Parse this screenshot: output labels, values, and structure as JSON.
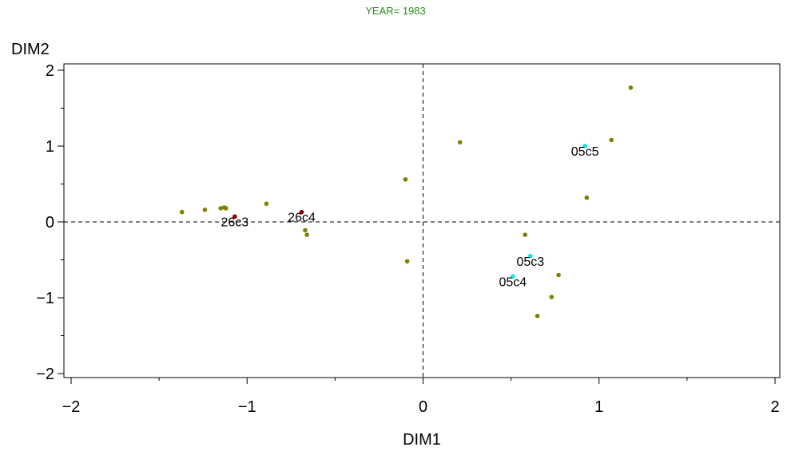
{
  "chart_data": {
    "type": "scatter",
    "title": "YEAR= 1983",
    "xlabel": "DIM1",
    "ylabel": "DIM2",
    "xlim": [
      -2,
      2
    ],
    "ylim": [
      -2,
      2
    ],
    "xticks": [
      -2,
      -1,
      0,
      1,
      2
    ],
    "yticks": [
      -2,
      -1,
      0,
      1,
      2
    ],
    "xtick_labels": [
      "−2",
      "−1",
      "0",
      "1",
      "2"
    ],
    "ytick_labels": [
      "−2",
      "−1",
      "0",
      "1",
      "2"
    ],
    "grid": false,
    "reference_lines": {
      "x": 0,
      "y": 0,
      "style": "dashed"
    },
    "colors": {
      "default": "#808000",
      "highlight_05": "#00e5e5",
      "highlight_26": "#8b0000",
      "title": "#2e8b1f"
    },
    "points": [
      {
        "x": -1.37,
        "y": 0.13,
        "label": ""
      },
      {
        "x": -1.24,
        "y": 0.16,
        "label": ""
      },
      {
        "x": -1.15,
        "y": 0.18,
        "label": ""
      },
      {
        "x": -1.13,
        "y": 0.19,
        "label": ""
      },
      {
        "x": -1.12,
        "y": 0.18,
        "label": ""
      },
      {
        "x": -1.07,
        "y": 0.07,
        "label": "26c3",
        "color": "#8b0000"
      },
      {
        "x": -0.89,
        "y": 0.24,
        "label": ""
      },
      {
        "x": -0.69,
        "y": 0.13,
        "label": "26c4",
        "color": "#8b0000"
      },
      {
        "x": -0.67,
        "y": -0.11,
        "label": ""
      },
      {
        "x": -0.66,
        "y": -0.17,
        "label": ""
      },
      {
        "x": -0.1,
        "y": 0.56,
        "label": ""
      },
      {
        "x": -0.09,
        "y": -0.52,
        "label": ""
      },
      {
        "x": 0.21,
        "y": 1.05,
        "label": ""
      },
      {
        "x": 0.58,
        "y": -0.17,
        "label": ""
      },
      {
        "x": 0.61,
        "y": -0.45,
        "label": "05c3",
        "color": "#00e5e5"
      },
      {
        "x": 0.51,
        "y": -0.72,
        "label": "05c4",
        "color": "#00e5e5"
      },
      {
        "x": 0.65,
        "y": -1.24,
        "label": ""
      },
      {
        "x": 0.73,
        "y": -0.99,
        "label": ""
      },
      {
        "x": 0.77,
        "y": -0.7,
        "label": ""
      },
      {
        "x": 0.92,
        "y": 1.0,
        "label": "05c5",
        "color": "#00e5e5"
      },
      {
        "x": 0.93,
        "y": 0.32,
        "label": ""
      },
      {
        "x": 1.07,
        "y": 1.08,
        "label": ""
      },
      {
        "x": 1.18,
        "y": 1.77,
        "label": ""
      }
    ]
  }
}
